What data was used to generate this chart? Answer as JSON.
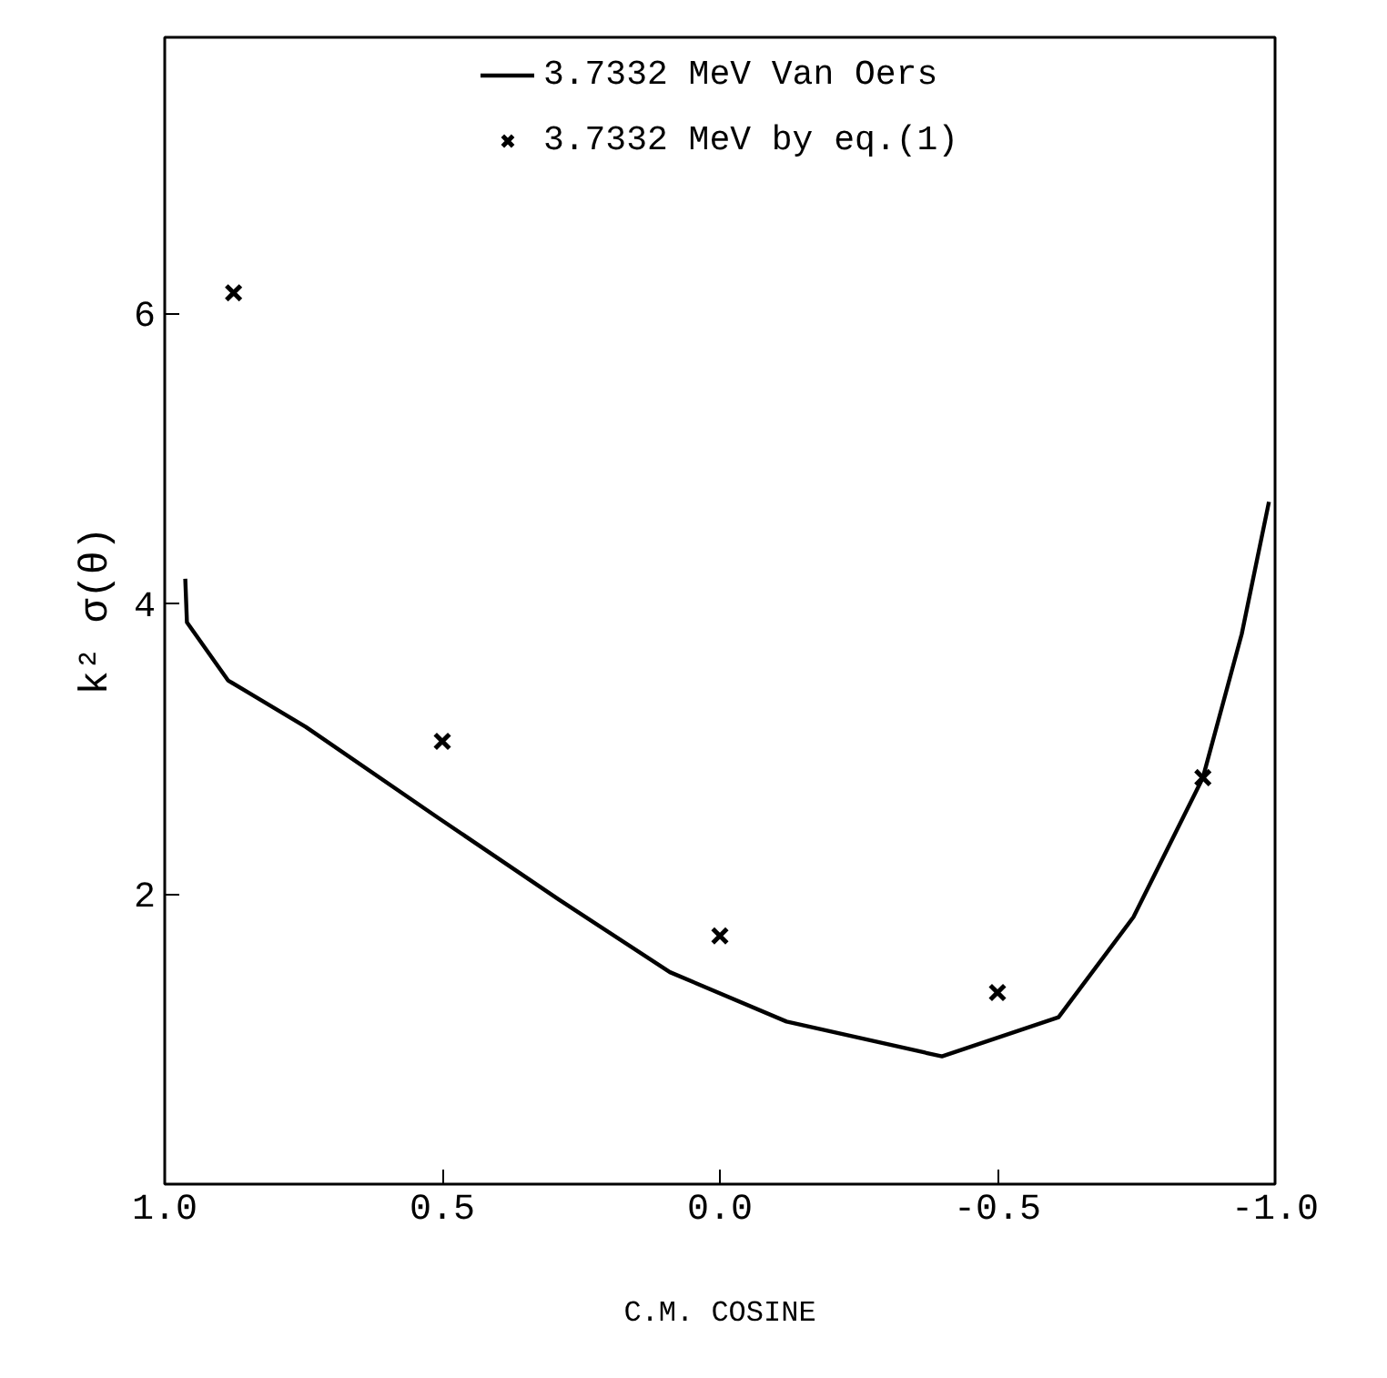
{
  "chart_data": {
    "type": "line",
    "xlabel": "C.M. COSINE",
    "ylabel": "k² σ(θ)",
    "xlim": [
      1,
      -1
    ],
    "ylim": [
      0,
      7.9
    ],
    "xticks": [
      {
        "value": 1,
        "label": "1.0"
      },
      {
        "value": 0.5,
        "label": "0.5"
      },
      {
        "value": 0,
        "label": "0.0"
      },
      {
        "value": -0.5,
        "label": "-0.5"
      },
      {
        "value": -1,
        "label": "-1.0"
      }
    ],
    "yticks": [
      2,
      4,
      6
    ],
    "grid": false,
    "legend": "top",
    "series": [
      {
        "name": "3.7332 MeV Van Oers",
        "color": "#000000",
        "marker": "none",
        "line_style": "solid",
        "x": [
          0.963,
          0.96,
          0.886,
          0.746,
          0.51,
          0.29,
          0.09,
          -0.12,
          -0.4,
          -0.61,
          -0.745,
          -0.87,
          -0.94,
          -0.989
        ],
        "values": [
          4.17,
          3.87,
          3.47,
          3.15,
          2.53,
          1.96,
          1.46,
          1.12,
          0.88,
          1.15,
          1.84,
          2.8,
          3.79,
          4.7
        ]
      },
      {
        "name": "3.7332 MeV by eq.(1)",
        "type": "scatter",
        "color": "#000000",
        "marker": "cross",
        "x": [
          0.876,
          0.5,
          0.0,
          -0.5,
          -0.87
        ],
        "values": [
          6.14,
          3.05,
          1.71,
          1.32,
          2.8
        ]
      }
    ]
  }
}
